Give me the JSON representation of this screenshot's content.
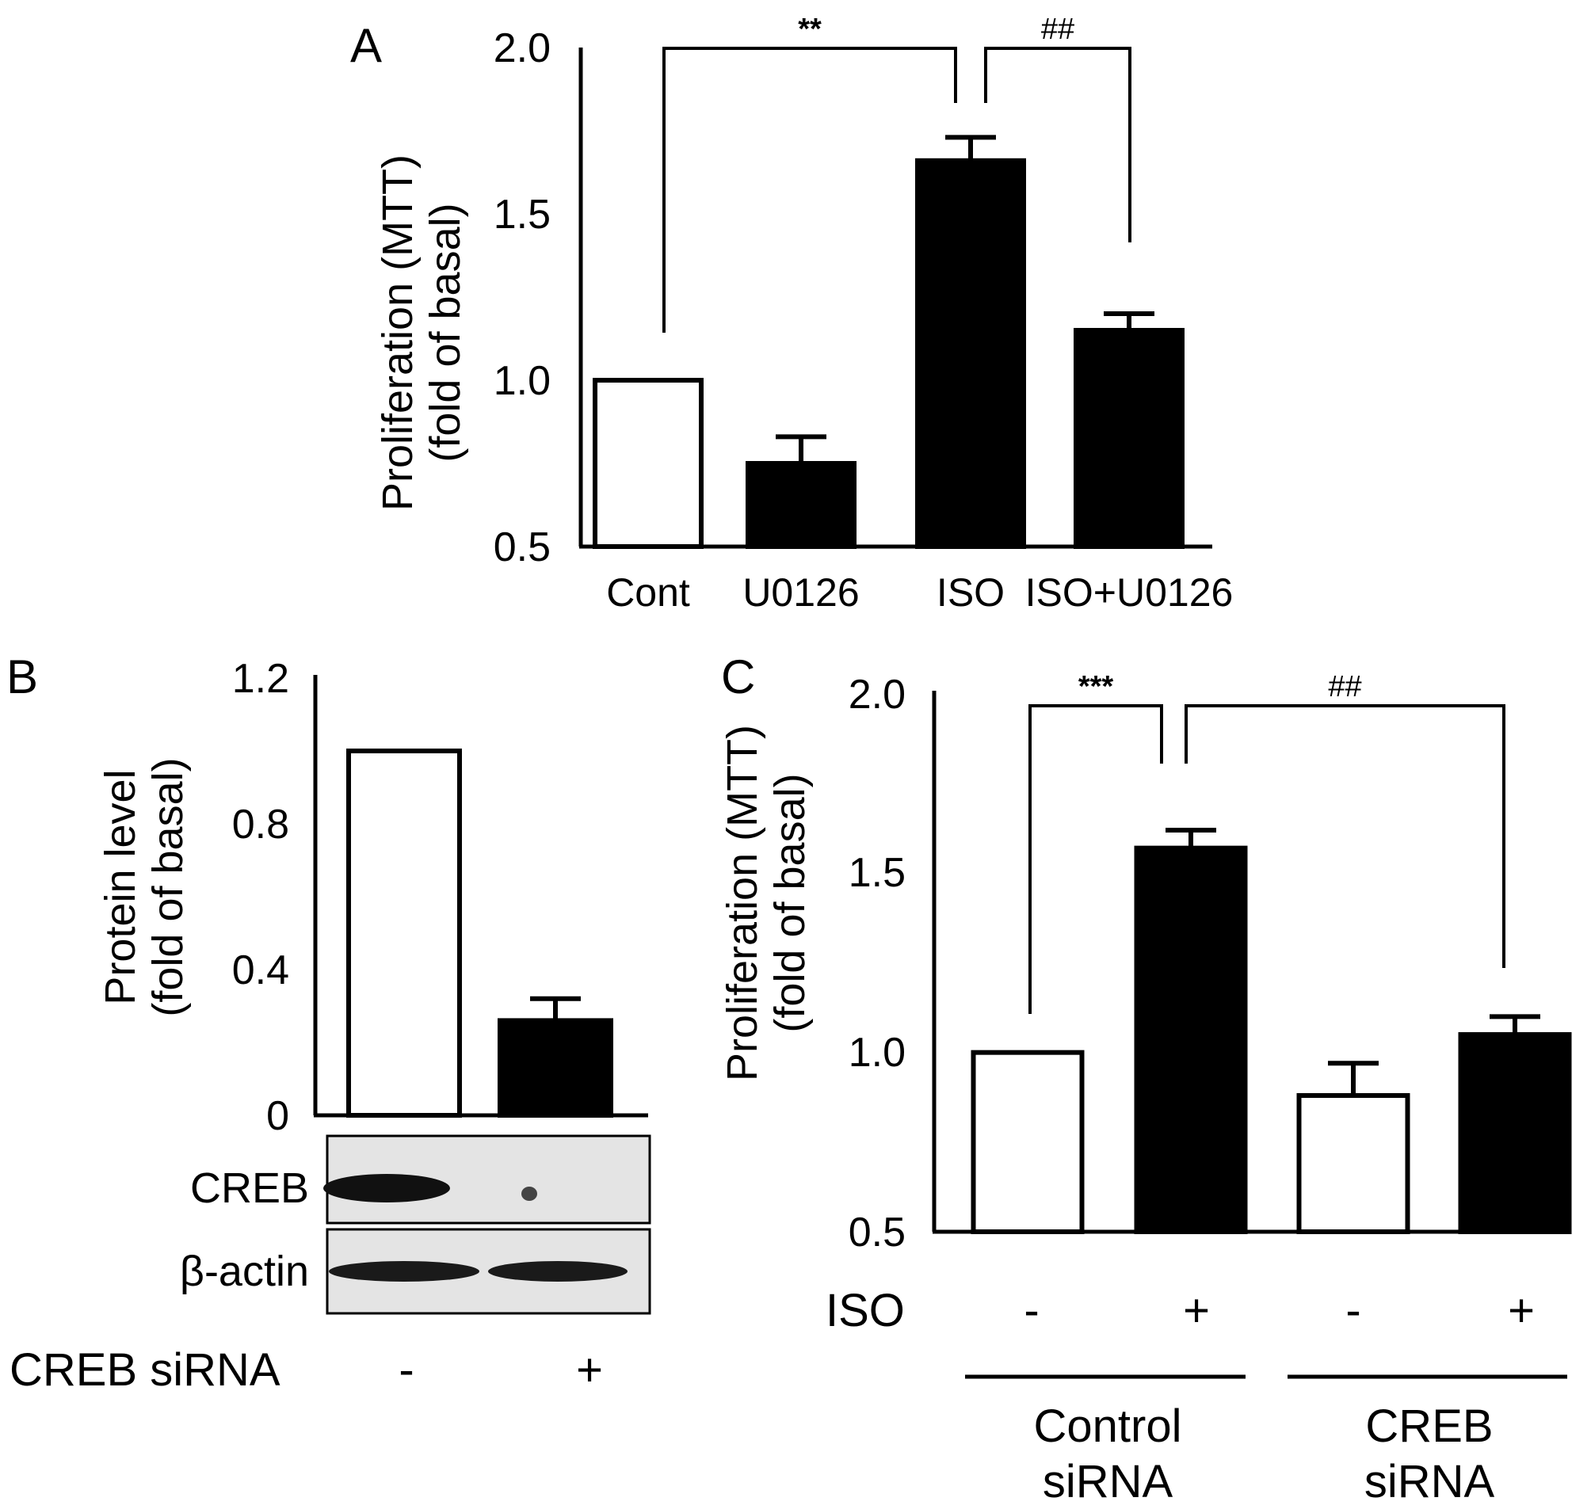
{
  "panels": {
    "A": {
      "letter": "A",
      "chart": {
        "type": "bar",
        "ylabel_line1": "Proliferation (MTT)",
        "ylabel_line2": "(fold of basal)",
        "ylim": [
          0.5,
          2.0
        ],
        "yticks": [
          "0.5",
          "1.0",
          "1.5",
          "2.0"
        ],
        "ytick_values": [
          0.5,
          1.0,
          1.5,
          2.0
        ],
        "categories": [
          "Cont",
          "U0126",
          "ISO",
          "ISO+U0126"
        ],
        "values": [
          1.0,
          0.75,
          1.66,
          1.15
        ],
        "errors": [
          0,
          0.08,
          0.07,
          0.05
        ],
        "fills": [
          "white",
          "black",
          "black",
          "black"
        ],
        "significance": [
          {
            "label": "**",
            "from": 0,
            "to": 2
          },
          {
            "label": "##",
            "from": 2,
            "to": 3
          }
        ]
      }
    },
    "B": {
      "letter": "B",
      "chart": {
        "type": "bar",
        "ylabel_line1": "Protein level",
        "ylabel_line2": "(fold of basal)",
        "ylim": [
          0,
          1.2
        ],
        "yticks": [
          "0",
          "0.4",
          "0.8",
          "1.2"
        ],
        "ytick_values": [
          0,
          0.4,
          0.8,
          1.2
        ],
        "values": [
          1.0,
          0.26
        ],
        "errors": [
          0,
          0.06
        ],
        "fills": [
          "white",
          "black"
        ]
      },
      "blot": {
        "rows": [
          "CREB",
          "β-actin"
        ]
      },
      "condition_label": "CREB siRNA",
      "condition_signs": [
        "-",
        "+"
      ]
    },
    "C": {
      "letter": "C",
      "chart": {
        "type": "bar",
        "ylabel_line1": "Proliferation (MTT)",
        "ylabel_line2": "(fold of basal)",
        "ylim": [
          0.5,
          2.0
        ],
        "yticks": [
          "0.5",
          "1.0",
          "1.5",
          "2.0"
        ],
        "ytick_values": [
          0.5,
          1.0,
          1.5,
          2.0
        ],
        "values": [
          1.0,
          1.57,
          0.88,
          1.05
        ],
        "errors": [
          0,
          0.05,
          0.09,
          0.05
        ],
        "fills": [
          "white",
          "black",
          "white",
          "black"
        ],
        "significance": [
          {
            "label": "***",
            "from": 0,
            "to": 1
          },
          {
            "label": "##",
            "from": 1,
            "to": 3
          }
        ]
      },
      "iso_label": "ISO",
      "iso_signs": [
        "-",
        "+",
        "-",
        "+"
      ],
      "groups": [
        {
          "line1": "Control",
          "line2": "siRNA"
        },
        {
          "line1": "CREB",
          "line2": "siRNA"
        }
      ]
    }
  }
}
